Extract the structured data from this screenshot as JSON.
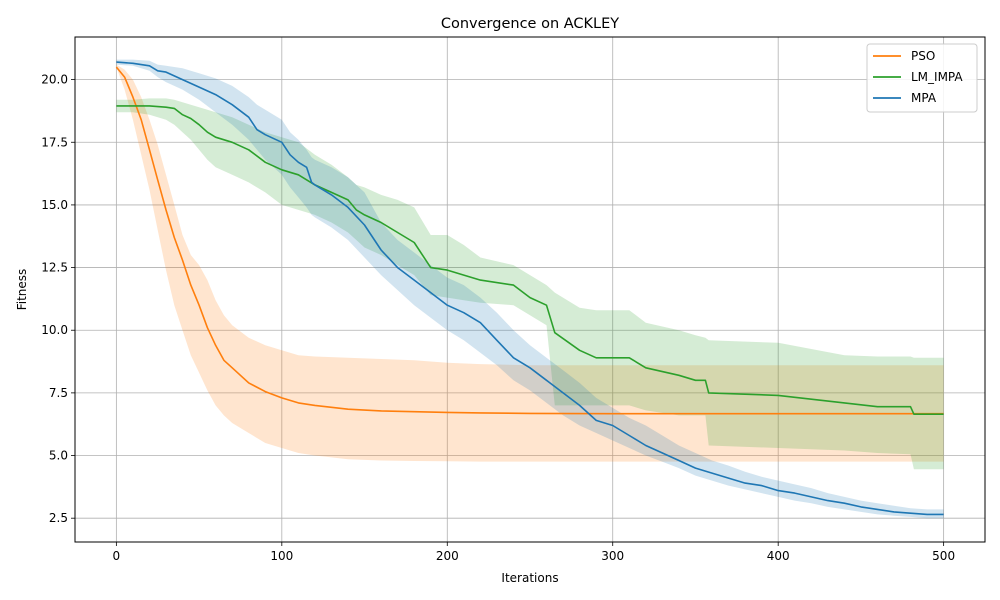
{
  "chart_data": {
    "type": "line",
    "title": "Convergence on ACKLEY",
    "xlabel": "Iterations",
    "ylabel": "Fitness",
    "xlim": [
      -25,
      525
    ],
    "ylim": [
      1.55,
      21.7
    ],
    "xticks": [
      0,
      100,
      200,
      300,
      400,
      500
    ],
    "yticks": [
      2.5,
      5.0,
      7.5,
      10.0,
      12.5,
      15.0,
      17.5,
      20.0
    ],
    "xtick_labels": [
      "0",
      "100",
      "200",
      "300",
      "400",
      "500"
    ],
    "ytick_labels": [
      "2.5",
      "5.0",
      "7.5",
      "10.0",
      "12.5",
      "15.0",
      "17.5",
      "20.0"
    ],
    "grid": true,
    "legend_position": "top-right",
    "series": [
      {
        "name": "PSO",
        "color": "#ff7f0e",
        "x": [
          0,
          5,
          10,
          15,
          20,
          25,
          30,
          35,
          40,
          45,
          50,
          55,
          60,
          65,
          70,
          80,
          90,
          100,
          110,
          120,
          140,
          160,
          180,
          200,
          220,
          250,
          300,
          350,
          400,
          450,
          500
        ],
        "y": [
          20.5,
          20.1,
          19.3,
          18.4,
          17.2,
          16.0,
          14.8,
          13.7,
          12.8,
          11.8,
          11.0,
          10.1,
          9.4,
          8.8,
          8.5,
          7.9,
          7.55,
          7.3,
          7.1,
          7.0,
          6.85,
          6.78,
          6.75,
          6.72,
          6.7,
          6.68,
          6.67,
          6.67,
          6.67,
          6.67,
          6.67
        ],
        "lower": [
          20.5,
          19.6,
          18.4,
          17.0,
          15.6,
          14.0,
          12.4,
          11.0,
          10.0,
          9.0,
          8.3,
          7.6,
          7.0,
          6.6,
          6.3,
          5.9,
          5.5,
          5.3,
          5.1,
          5.0,
          4.85,
          4.8,
          4.78,
          4.77,
          4.76,
          4.76,
          4.76,
          4.76,
          4.76,
          4.76,
          4.76
        ],
        "upper": [
          20.6,
          20.4,
          20.0,
          19.3,
          18.4,
          17.4,
          16.2,
          15.0,
          13.8,
          13.0,
          12.6,
          12.0,
          11.2,
          10.6,
          10.2,
          9.7,
          9.4,
          9.2,
          9.0,
          8.95,
          8.9,
          8.85,
          8.8,
          8.7,
          8.65,
          8.6,
          8.6,
          8.6,
          8.6,
          8.6,
          8.6
        ]
      },
      {
        "name": "LM_IMPA",
        "color": "#2ca02c",
        "x": [
          0,
          10,
          20,
          30,
          35,
          40,
          45,
          50,
          55,
          60,
          70,
          80,
          90,
          100,
          110,
          120,
          130,
          140,
          145,
          150,
          160,
          170,
          180,
          190,
          200,
          210,
          220,
          240,
          250,
          260,
          265,
          280,
          290,
          310,
          320,
          340,
          350,
          356,
          358,
          400,
          440,
          460,
          480,
          482,
          500
        ],
        "y": [
          18.95,
          18.95,
          18.95,
          18.9,
          18.85,
          18.6,
          18.45,
          18.2,
          17.9,
          17.7,
          17.5,
          17.2,
          16.7,
          16.4,
          16.2,
          15.8,
          15.5,
          15.2,
          14.8,
          14.6,
          14.3,
          13.9,
          13.5,
          12.5,
          12.4,
          12.2,
          12.0,
          11.8,
          11.3,
          11.0,
          9.9,
          9.2,
          8.9,
          8.9,
          8.5,
          8.2,
          8.0,
          8.0,
          7.5,
          7.4,
          7.1,
          6.95,
          6.95,
          6.65,
          6.65
        ],
        "lower": [
          18.7,
          18.7,
          18.6,
          18.4,
          18.2,
          17.9,
          17.6,
          17.2,
          16.8,
          16.5,
          16.2,
          15.9,
          15.5,
          15.0,
          14.8,
          14.6,
          14.3,
          13.9,
          13.6,
          13.3,
          13.0,
          12.6,
          12.2,
          11.4,
          11.3,
          11.2,
          11.1,
          11.0,
          10.6,
          10.2,
          7.0,
          7.0,
          7.0,
          7.0,
          6.8,
          6.6,
          6.6,
          6.6,
          5.4,
          5.3,
          5.2,
          5.1,
          5.05,
          4.45,
          4.45
        ],
        "upper": [
          19.2,
          19.2,
          19.25,
          19.25,
          19.2,
          19.1,
          19.0,
          18.9,
          18.8,
          18.7,
          18.5,
          18.2,
          17.9,
          17.7,
          17.5,
          17.0,
          16.6,
          16.1,
          15.8,
          15.7,
          15.4,
          15.2,
          14.9,
          13.8,
          13.8,
          13.4,
          12.9,
          12.6,
          12.2,
          11.8,
          11.5,
          10.9,
          10.8,
          10.8,
          10.3,
          10.0,
          9.8,
          9.7,
          9.6,
          9.5,
          9.0,
          8.95,
          8.95,
          8.9,
          8.9
        ]
      },
      {
        "name": "MPA",
        "color": "#1f77b4",
        "x": [
          0,
          10,
          20,
          25,
          30,
          40,
          50,
          60,
          70,
          80,
          85,
          90,
          100,
          105,
          110,
          115,
          118,
          120,
          130,
          140,
          150,
          160,
          170,
          180,
          190,
          200,
          210,
          220,
          230,
          240,
          250,
          260,
          270,
          280,
          290,
          300,
          310,
          320,
          330,
          340,
          350,
          360,
          370,
          380,
          390,
          400,
          410,
          420,
          430,
          440,
          450,
          460,
          470,
          480,
          490,
          500
        ],
        "y": [
          20.7,
          20.65,
          20.55,
          20.35,
          20.3,
          20.0,
          19.7,
          19.4,
          19.0,
          18.5,
          18.0,
          17.8,
          17.5,
          17.0,
          16.7,
          16.5,
          15.9,
          15.8,
          15.4,
          14.9,
          14.2,
          13.2,
          12.5,
          12.0,
          11.5,
          11.0,
          10.7,
          10.3,
          9.6,
          8.9,
          8.5,
          8.0,
          7.5,
          7.0,
          6.4,
          6.2,
          5.8,
          5.4,
          5.1,
          4.8,
          4.5,
          4.3,
          4.1,
          3.9,
          3.8,
          3.6,
          3.5,
          3.35,
          3.2,
          3.1,
          2.95,
          2.85,
          2.75,
          2.7,
          2.65,
          2.65
        ],
        "lower": [
          20.6,
          20.55,
          20.35,
          20.1,
          19.9,
          19.6,
          19.2,
          18.7,
          18.2,
          17.6,
          17.2,
          16.8,
          16.2,
          15.7,
          15.3,
          14.9,
          14.6,
          14.5,
          14.1,
          13.6,
          12.9,
          12.2,
          11.6,
          11.0,
          10.5,
          10.0,
          9.6,
          9.1,
          8.6,
          8.0,
          7.6,
          7.1,
          6.6,
          6.2,
          5.9,
          5.6,
          5.3,
          5.0,
          4.75,
          4.5,
          4.2,
          4.0,
          3.8,
          3.65,
          3.5,
          3.35,
          3.2,
          3.1,
          2.95,
          2.85,
          2.75,
          2.65,
          2.6,
          2.55,
          2.5,
          2.5
        ],
        "upper": [
          20.8,
          20.8,
          20.75,
          20.6,
          20.55,
          20.45,
          20.25,
          20.05,
          19.75,
          19.3,
          19.0,
          18.8,
          18.4,
          17.9,
          17.6,
          17.2,
          16.9,
          16.8,
          16.5,
          16.1,
          15.5,
          14.3,
          13.6,
          13.1,
          12.6,
          12.1,
          11.8,
          11.3,
          10.7,
          10.0,
          9.4,
          8.9,
          8.4,
          7.9,
          7.3,
          6.9,
          6.5,
          6.2,
          5.8,
          5.4,
          5.1,
          4.8,
          4.6,
          4.35,
          4.15,
          4.0,
          3.85,
          3.7,
          3.5,
          3.35,
          3.2,
          3.1,
          3.0,
          2.9,
          2.85,
          2.85
        ]
      }
    ]
  }
}
